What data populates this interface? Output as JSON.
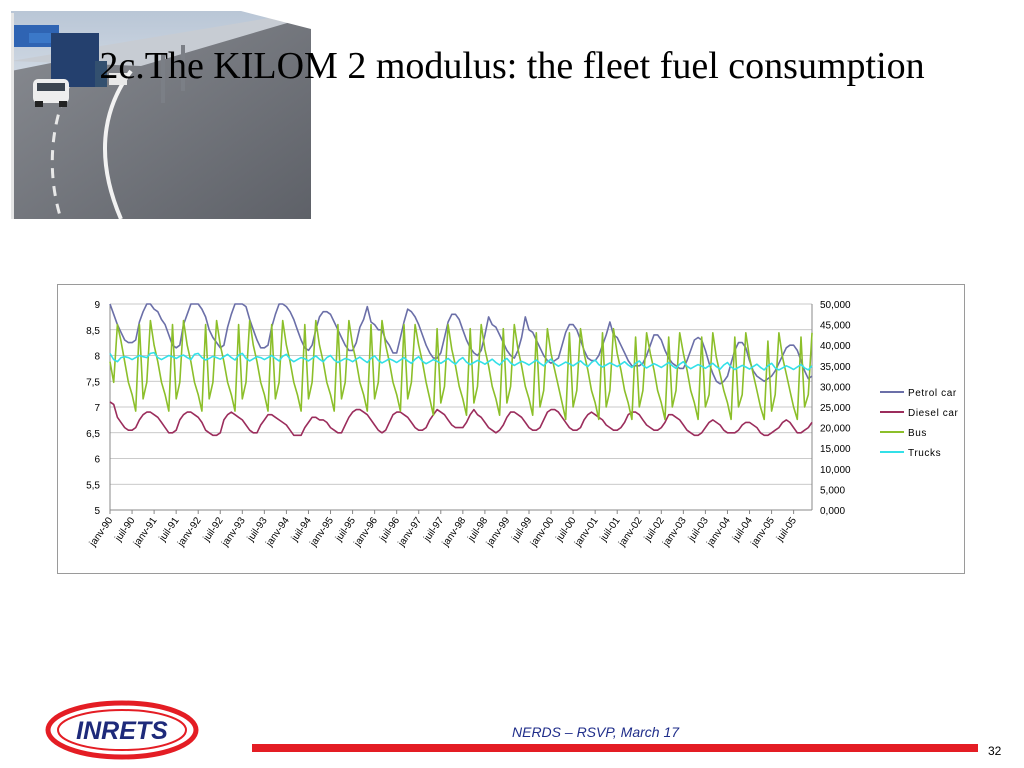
{
  "slide": {
    "title": "2c.The KILOM 2 modulus: the fleet fuel consumption",
    "footer": "NERDS – RSVP, March 17",
    "page_number": "32",
    "logo_text": "INRETS"
  },
  "chart_data": {
    "type": "line",
    "title": "",
    "xlabel": "",
    "ylabel": "",
    "ylim_left": [
      5,
      9
    ],
    "yticks_left": [
      "5",
      "5,5",
      "6",
      "6,5",
      "7",
      "7,5",
      "8",
      "8,5",
      "9"
    ],
    "ylim_right": [
      0,
      50000
    ],
    "yticks_right": [
      "0,000",
      "5,000",
      "10,000",
      "15,000",
      "20,000",
      "25,000",
      "30,000",
      "35,000",
      "40,000",
      "45,000",
      "50,000"
    ],
    "x_start": "1990-01",
    "months": 192,
    "xticks": [
      "janv-90",
      "juil-90",
      "janv-91",
      "juil-91",
      "janv-92",
      "juil-92",
      "janv-93",
      "juil-93",
      "janv-94",
      "juil-94",
      "janv-95",
      "juil-95",
      "janv-96",
      "juil-96",
      "janv-97",
      "juil-97",
      "janv-98",
      "juil-98",
      "janv-99",
      "juil-99",
      "janv-00",
      "juil-00",
      "janv-01",
      "juil-01",
      "janv-02",
      "juil-02",
      "janv-03",
      "juil-03",
      "janv-04",
      "juil-04",
      "janv-05",
      "juil-05"
    ],
    "legend_position": "right",
    "grid": "horizontal",
    "series": [
      {
        "name": "Petrol car",
        "axis": "left",
        "color": "#6b6fa8",
        "values": [
          9.0,
          8.8,
          8.6,
          8.45,
          8.3,
          8.25,
          8.25,
          8.3,
          8.65,
          8.85,
          9.0,
          9.05,
          8.9,
          8.85,
          8.7,
          8.6,
          8.4,
          8.2,
          8.15,
          8.2,
          8.6,
          8.8,
          9.0,
          9.1,
          9.05,
          8.9,
          8.75,
          8.5,
          8.35,
          8.25,
          8.15,
          8.2,
          8.55,
          8.8,
          9.0,
          9.1,
          9.1,
          8.95,
          8.7,
          8.5,
          8.3,
          8.15,
          8.15,
          8.2,
          8.55,
          8.8,
          9.0,
          9.0,
          8.95,
          8.85,
          8.7,
          8.5,
          8.3,
          8.15,
          8.1,
          8.2,
          8.5,
          8.75,
          8.85,
          8.85,
          8.8,
          8.65,
          8.5,
          8.35,
          8.2,
          8.1,
          8.1,
          8.25,
          8.55,
          8.7,
          8.95,
          8.65,
          8.6,
          8.5,
          8.5,
          8.3,
          8.2,
          8.05,
          8.05,
          8.35,
          8.65,
          8.9,
          8.85,
          8.75,
          8.6,
          8.4,
          8.2,
          8.05,
          7.95,
          7.95,
          8.05,
          8.35,
          8.65,
          8.8,
          8.8,
          8.7,
          8.5,
          8.3,
          8.15,
          8.05,
          8.0,
          8.1,
          8.4,
          8.75,
          8.6,
          8.55,
          8.4,
          8.25,
          8.1,
          8.0,
          7.95,
          8.1,
          8.35,
          8.75,
          8.5,
          8.45,
          8.3,
          8.15,
          8.0,
          7.9,
          7.85,
          7.9,
          7.95,
          8.2,
          8.45,
          8.6,
          8.6,
          8.5,
          8.3,
          8.1,
          7.95,
          7.9,
          7.9,
          8.0,
          8.2,
          8.4,
          8.65,
          8.4,
          8.35,
          8.2,
          8.05,
          7.9,
          7.8,
          7.8,
          7.8,
          7.85,
          8.0,
          8.2,
          8.4,
          8.4,
          8.3,
          8.1,
          7.95,
          7.85,
          7.8,
          7.75,
          7.75,
          7.9,
          8.1,
          8.3,
          8.35,
          8.3,
          8.1,
          7.85,
          7.65,
          7.5,
          7.45,
          7.5,
          7.6,
          7.85,
          8.1,
          8.25,
          8.25,
          8.15,
          7.9,
          7.7,
          7.6,
          7.55,
          7.5,
          7.55,
          7.6,
          7.7,
          7.85,
          8.0,
          8.15,
          8.2,
          8.2,
          8.1,
          7.9,
          7.7,
          7.55,
          7.6
        ]
      },
      {
        "name": "Diesel car",
        "axis": "left",
        "color": "#9b2d5c",
        "values": [
          7.1,
          7.05,
          6.8,
          6.7,
          6.6,
          6.55,
          6.55,
          6.6,
          6.75,
          6.85,
          6.9,
          6.9,
          6.85,
          6.8,
          6.7,
          6.6,
          6.5,
          6.5,
          6.55,
          6.75,
          6.85,
          6.9,
          6.9,
          6.85,
          6.8,
          6.7,
          6.55,
          6.5,
          6.45,
          6.45,
          6.5,
          6.75,
          6.85,
          6.9,
          6.85,
          6.8,
          6.75,
          6.65,
          6.55,
          6.5,
          6.5,
          6.65,
          6.75,
          6.85,
          6.85,
          6.8,
          6.75,
          6.7,
          6.65,
          6.55,
          6.45,
          6.45,
          6.45,
          6.6,
          6.7,
          6.8,
          6.8,
          6.75,
          6.75,
          6.7,
          6.6,
          6.55,
          6.5,
          6.5,
          6.65,
          6.8,
          6.9,
          6.95,
          6.95,
          6.9,
          6.85,
          6.75,
          6.65,
          6.55,
          6.5,
          6.55,
          6.7,
          6.85,
          6.9,
          6.9,
          6.85,
          6.8,
          6.7,
          6.6,
          6.55,
          6.55,
          6.6,
          6.75,
          6.85,
          6.95,
          6.9,
          6.85,
          6.75,
          6.65,
          6.6,
          6.6,
          6.6,
          6.7,
          6.85,
          6.95,
          6.85,
          6.8,
          6.7,
          6.6,
          6.55,
          6.5,
          6.55,
          6.65,
          6.8,
          6.9,
          6.9,
          6.85,
          6.8,
          6.7,
          6.6,
          6.55,
          6.55,
          6.6,
          6.75,
          6.9,
          6.95,
          6.95,
          6.9,
          6.8,
          6.7,
          6.6,
          6.55,
          6.55,
          6.6,
          6.75,
          6.85,
          6.9,
          6.85,
          6.8,
          6.75,
          6.65,
          6.6,
          6.55,
          6.55,
          6.6,
          6.7,
          6.85,
          6.9,
          6.9,
          6.85,
          6.75,
          6.65,
          6.6,
          6.55,
          6.55,
          6.6,
          6.7,
          6.85,
          6.85,
          6.8,
          6.75,
          6.65,
          6.55,
          6.5,
          6.45,
          6.45,
          6.5,
          6.6,
          6.7,
          6.75,
          6.7,
          6.65,
          6.55,
          6.5,
          6.5,
          6.5,
          6.55,
          6.65,
          6.7,
          6.7,
          6.65,
          6.6,
          6.5,
          6.45,
          6.45,
          6.5,
          6.55,
          6.6,
          6.7,
          6.75,
          6.7,
          6.6,
          6.5,
          6.5,
          6.55,
          6.6,
          6.7
        ]
      },
      {
        "name": "Bus",
        "axis": "right",
        "color": "#8cbf2a",
        "values": [
          36000,
          31000,
          45000,
          41000,
          36000,
          31000,
          28000,
          24000,
          45000,
          27000,
          31000,
          46000,
          40000,
          36000,
          31000,
          28000,
          24000,
          45000,
          27000,
          31000,
          46000,
          40000,
          36000,
          31000,
          28000,
          24000,
          45000,
          27000,
          31000,
          46000,
          40000,
          36000,
          31000,
          28000,
          24000,
          45000,
          27000,
          31000,
          46000,
          40000,
          36000,
          31000,
          28000,
          24000,
          45000,
          27000,
          31000,
          46000,
          40000,
          36000,
          31000,
          28000,
          24000,
          45000,
          27000,
          31000,
          46000,
          40000,
          36000,
          31000,
          28000,
          24000,
          45000,
          27000,
          31000,
          46000,
          40000,
          36000,
          31000,
          28000,
          24000,
          45000,
          27000,
          31000,
          46000,
          40000,
          36000,
          31000,
          28000,
          24000,
          45000,
          27000,
          31000,
          45000,
          40000,
          36000,
          31000,
          27000,
          23000,
          44000,
          26000,
          30000,
          45000,
          39000,
          35000,
          30000,
          27000,
          23000,
          44000,
          26000,
          30000,
          45000,
          39000,
          35000,
          30000,
          27000,
          23000,
          44000,
          26000,
          30000,
          45000,
          39000,
          35000,
          30000,
          27000,
          23000,
          43000,
          25000,
          29000,
          44000,
          38000,
          34000,
          30000,
          26000,
          22000,
          43000,
          25000,
          29000,
          44000,
          38000,
          34000,
          29000,
          26000,
          22000,
          43000,
          25000,
          29000,
          44000,
          38000,
          34000,
          29000,
          26000,
          22000,
          42000,
          25000,
          29000,
          43000,
          38000,
          34000,
          29000,
          26000,
          22000,
          42000,
          25000,
          29000,
          43000,
          38000,
          34000,
          29000,
          26000,
          22000,
          42000,
          25000,
          28000,
          43000,
          37000,
          33000,
          29000,
          26000,
          22000,
          42000,
          25000,
          28000,
          43000,
          37000,
          33000,
          29000,
          25000,
          22000,
          41000,
          24000,
          28000,
          43000,
          37000,
          33000,
          29000,
          25000,
          22000,
          42000,
          25000,
          28000,
          43000
        ]
      },
      {
        "name": "Trucks",
        "axis": "right",
        "color": "#33e0e8",
        "values": [
          38000,
          36500,
          36000,
          37000,
          37200,
          37000,
          36500,
          37000,
          37500,
          37200,
          37000,
          38000,
          38200,
          37000,
          36500,
          37000,
          37500,
          37200,
          36800,
          37300,
          37600,
          37000,
          36500,
          37800,
          38000,
          37000,
          36400,
          36800,
          37300,
          37000,
          36600,
          37200,
          37800,
          37000,
          36400,
          37600,
          38000,
          36800,
          36200,
          36700,
          37200,
          37000,
          36500,
          37000,
          37500,
          36800,
          36200,
          37300,
          37800,
          36600,
          36000,
          36500,
          37000,
          36700,
          36200,
          36800,
          37400,
          36600,
          36000,
          37000,
          37500,
          36400,
          35800,
          36300,
          36800,
          36500,
          36000,
          36600,
          37100,
          36400,
          35800,
          36800,
          37400,
          36300,
          35700,
          36200,
          36700,
          36300,
          35800,
          36400,
          37000,
          36200,
          35600,
          36600,
          37200,
          36100,
          35500,
          36000,
          36500,
          36100,
          35600,
          36200,
          36800,
          36000,
          35400,
          36400,
          37000,
          35900,
          35300,
          35800,
          36300,
          35900,
          35400,
          36000,
          36600,
          35800,
          35200,
          36200,
          36800,
          35700,
          35100,
          35600,
          36100,
          35700,
          35200,
          35800,
          36400,
          35600,
          35000,
          36000,
          36600,
          35500,
          34900,
          35400,
          35900,
          35500,
          35000,
          35600,
          36200,
          35400,
          34800,
          35800,
          36400,
          35300,
          34700,
          35200,
          35700,
          35300,
          34800,
          35400,
          36000,
          35200,
          34600,
          35600,
          36200,
          35100,
          34500,
          35000,
          35500,
          35100,
          34600,
          35200,
          35800,
          35000,
          34400,
          35400,
          36000,
          34900,
          34300,
          34800,
          35300,
          34900,
          34400,
          35000,
          35600,
          34800,
          34200,
          35200,
          35800,
          34700,
          34100,
          34600,
          35100,
          34700,
          34200,
          34800,
          35400,
          34600,
          34000,
          35000,
          35600,
          34500,
          34000,
          34500,
          35000,
          34600,
          34100,
          34700,
          35300,
          34500,
          34000,
          35000
        ]
      }
    ]
  }
}
